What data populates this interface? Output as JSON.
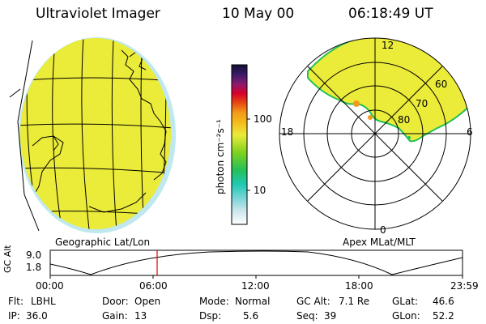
{
  "header": {
    "instrument": "Ultraviolet Imager",
    "date": "10 May 00",
    "time": "06:18:49 UT"
  },
  "colorbar": {
    "unit_label": "photon cm⁻²s⁻¹",
    "ticks": [
      "100",
      "10"
    ],
    "scale": "log"
  },
  "left_panel": {
    "caption": "Geographic Lat/Lon"
  },
  "right_panel": {
    "caption": "Apex MLat/MLT",
    "mlt_labels": {
      "top": "12",
      "left": "18",
      "right": "6",
      "bottom": "0"
    },
    "lat_labels": [
      "60",
      "70",
      "80"
    ]
  },
  "altitude_strip": {
    "axis_label": "GC Alt",
    "y_ticks": [
      "9.0",
      "1.8"
    ],
    "x_ticks": [
      "00:00",
      "06:00",
      "12:00",
      "18:00",
      "23:59"
    ],
    "marker_time": "06:18:49",
    "marker_color": "#e00000"
  },
  "status": {
    "flt_label": "Flt:",
    "flt_value": "LBHL",
    "door_label": "Door:",
    "door_value": "Open",
    "mode_label": "Mode:",
    "mode_value": "Normal",
    "gcalt_label": "GC Alt:",
    "gcalt_value": "7.1 Re",
    "glat_label": "GLat:",
    "glat_value": "46.6",
    "ip_label": "IP:",
    "ip_value": "36.0",
    "gain_label": "Gain:",
    "gain_value": "13",
    "dsp_label": "Dsp:",
    "dsp_value": "5.6",
    "seq_label": "Seq:",
    "seq_value": "39",
    "glon_label": "GLon:",
    "glon_value": "52.2"
  },
  "colors": {
    "emission": "#ebeb3a",
    "emission_edge": "#1fc8b4",
    "marker": "#e00000"
  }
}
